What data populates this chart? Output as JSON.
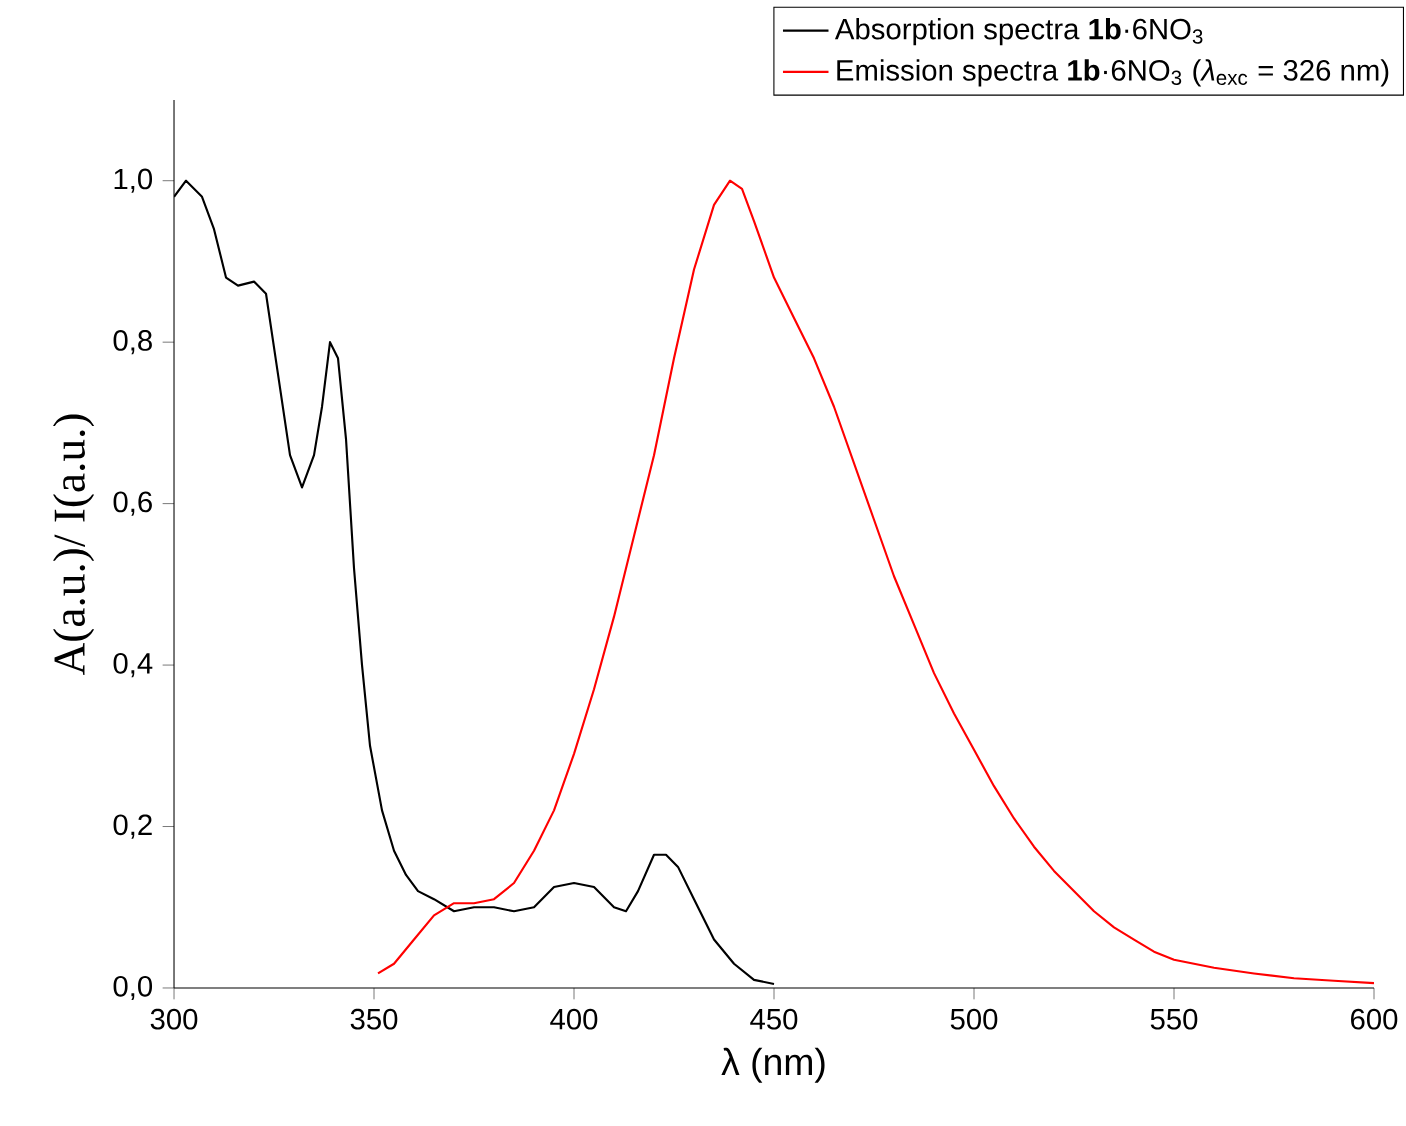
{
  "chart_data": {
    "type": "line",
    "xlabel": "λ (nm)",
    "ylabel": "A(a.u.)/ I(a.u.)",
    "xlim": [
      300,
      600
    ],
    "ylim": [
      0,
      1.1
    ],
    "xticks": [
      300,
      350,
      400,
      450,
      500,
      550,
      600
    ],
    "yticks": [
      {
        "value": 0,
        "label": "0,0"
      },
      {
        "value": 0.2,
        "label": "0,2"
      },
      {
        "value": 0.4,
        "label": "0,4"
      },
      {
        "value": 0.6,
        "label": "0,6"
      },
      {
        "value": 0.8,
        "label": "0,8"
      },
      {
        "value": 1.0,
        "label": "1,0"
      }
    ],
    "legend": "top right",
    "marker": "none",
    "line_style": "solid",
    "series": [
      {
        "name": "Absorption spectra **1b**·6NO$_{3}$",
        "color": "#000000",
        "x": [
          300,
          303,
          307,
          310,
          313,
          316,
          320,
          323,
          326,
          329,
          332,
          335,
          337,
          339,
          341,
          343,
          345,
          347,
          349,
          352,
          355,
          358,
          361,
          365,
          370,
          375,
          380,
          385,
          390,
          395,
          400,
          405,
          410,
          413,
          416,
          420,
          423,
          426,
          430,
          435,
          440,
          445,
          450
        ],
        "values": [
          0.98,
          1.0,
          0.98,
          0.94,
          0.88,
          0.87,
          0.875,
          0.86,
          0.76,
          0.66,
          0.62,
          0.66,
          0.72,
          0.8,
          0.78,
          0.68,
          0.52,
          0.4,
          0.3,
          0.22,
          0.17,
          0.14,
          0.12,
          0.11,
          0.095,
          0.1,
          0.1,
          0.095,
          0.1,
          0.125,
          0.13,
          0.125,
          0.1,
          0.095,
          0.12,
          0.165,
          0.165,
          0.15,
          0.11,
          0.06,
          0.03,
          0.01,
          0.005
        ]
      },
      {
        "name": "Emission spectra **1b**·6NO$_{3}$ (*λ*$_{exc}$ = 326 nm)",
        "color": "#ff0000",
        "x": [
          351,
          355,
          360,
          365,
          370,
          375,
          380,
          385,
          390,
          395,
          400,
          405,
          410,
          415,
          420,
          425,
          430,
          435,
          439,
          442,
          445,
          450,
          455,
          460,
          465,
          470,
          475,
          480,
          485,
          490,
          495,
          500,
          505,
          510,
          515,
          520,
          525,
          530,
          535,
          540,
          545,
          550,
          560,
          570,
          580,
          590,
          600
        ],
        "values": [
          0.018,
          0.03,
          0.06,
          0.09,
          0.105,
          0.105,
          0.11,
          0.13,
          0.17,
          0.22,
          0.29,
          0.37,
          0.46,
          0.56,
          0.66,
          0.78,
          0.89,
          0.97,
          1.0,
          0.99,
          0.95,
          0.88,
          0.83,
          0.78,
          0.72,
          0.65,
          0.58,
          0.51,
          0.45,
          0.39,
          0.34,
          0.295,
          0.25,
          0.21,
          0.175,
          0.145,
          0.12,
          0.095,
          0.075,
          0.06,
          0.045,
          0.035,
          0.025,
          0.018,
          0.012,
          0.009,
          0.006
        ]
      }
    ]
  }
}
